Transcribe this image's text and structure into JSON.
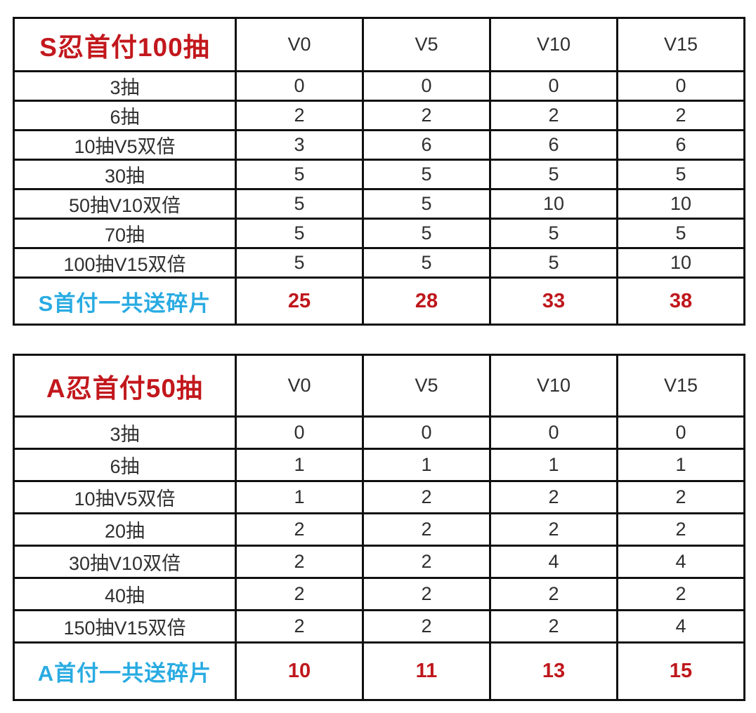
{
  "colors": {
    "title_red": "#c2181d",
    "summary_value_red": "#bf171c",
    "summary_label_cyan": "#29abe2",
    "border_black": "#101010",
    "body_text": "#2f2f2f",
    "background": "#ffffff"
  },
  "chart_data": [
    {
      "type": "table",
      "title": "S忍首付100抽",
      "columns": [
        "V0",
        "V5",
        "V10",
        "V15"
      ],
      "rows": [
        {
          "label": "3抽",
          "values": [
            "0",
            "0",
            "0",
            "0"
          ]
        },
        {
          "label": "6抽",
          "values": [
            "2",
            "2",
            "2",
            "2"
          ]
        },
        {
          "label": "10抽V5双倍",
          "values": [
            "3",
            "6",
            "6",
            "6"
          ]
        },
        {
          "label": "30抽",
          "values": [
            "5",
            "5",
            "5",
            "5"
          ]
        },
        {
          "label": "50抽V10双倍",
          "values": [
            "5",
            "5",
            "10",
            "10"
          ]
        },
        {
          "label": "70抽",
          "values": [
            "5",
            "5",
            "5",
            "5"
          ]
        },
        {
          "label": "100抽V15双倍",
          "values": [
            "5",
            "5",
            "5",
            "10"
          ]
        }
      ],
      "summary": {
        "label": "S首付一共送碎片",
        "values": [
          "25",
          "28",
          "33",
          "38"
        ]
      }
    },
    {
      "type": "table",
      "title": "A忍首付50抽",
      "columns": [
        "V0",
        "V5",
        "V10",
        "V15"
      ],
      "rows": [
        {
          "label": "3抽",
          "values": [
            "0",
            "0",
            "0",
            "0"
          ]
        },
        {
          "label": "6抽",
          "values": [
            "1",
            "1",
            "1",
            "1"
          ]
        },
        {
          "label": "10抽V5双倍",
          "values": [
            "1",
            "2",
            "2",
            "2"
          ]
        },
        {
          "label": "20抽",
          "values": [
            "2",
            "2",
            "2",
            "2"
          ]
        },
        {
          "label": "30抽V10双倍",
          "values": [
            "2",
            "2",
            "4",
            "4"
          ]
        },
        {
          "label": "40抽",
          "values": [
            "2",
            "2",
            "2",
            "2"
          ]
        },
        {
          "label": "150抽V15双倍",
          "values": [
            "2",
            "2",
            "2",
            "4"
          ]
        }
      ],
      "summary": {
        "label": "A首付一共送碎片",
        "values": [
          "10",
          "11",
          "13",
          "15"
        ]
      }
    }
  ]
}
